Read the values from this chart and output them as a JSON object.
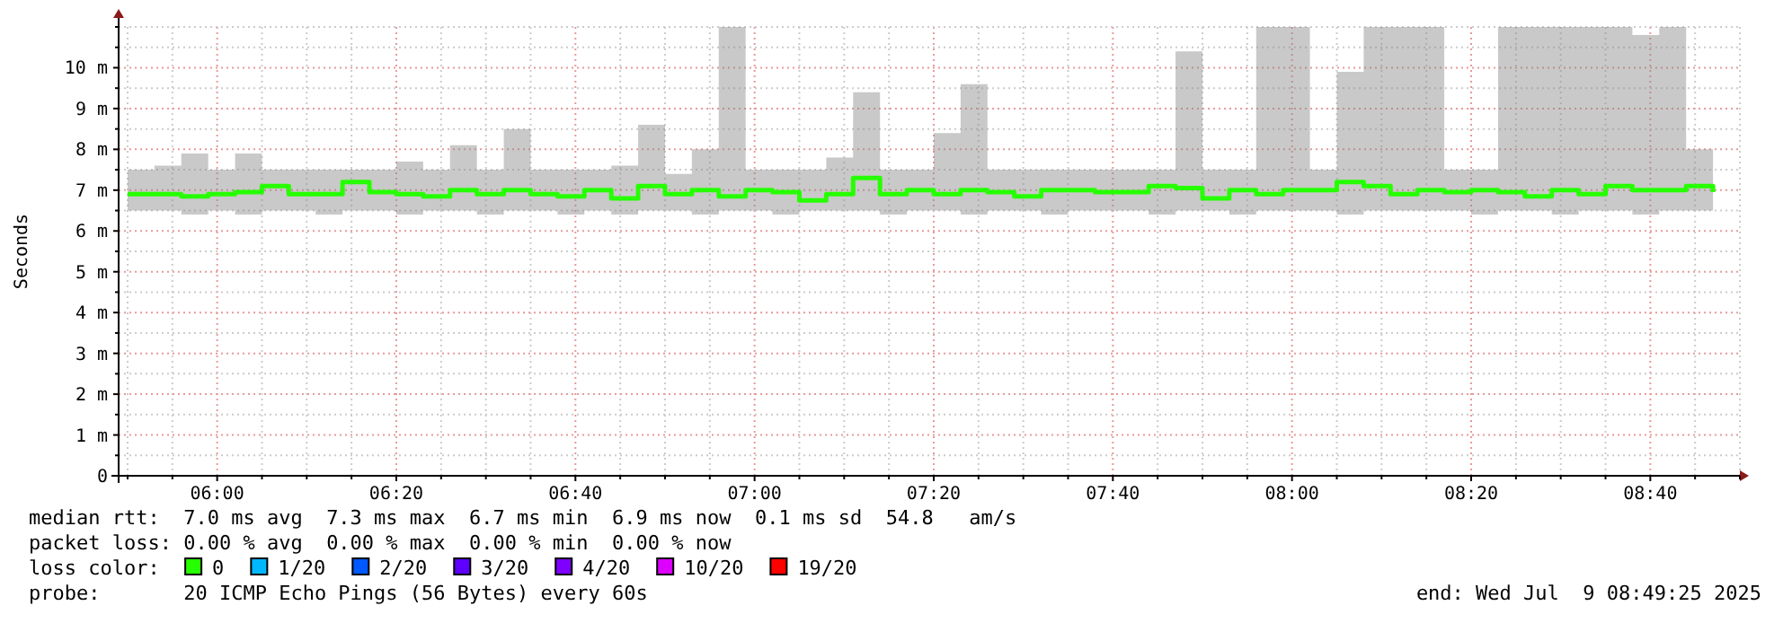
{
  "chart_data": {
    "type": "step",
    "ylabel": "Seconds",
    "legend_title": "loss color:",
    "legend": "bottom",
    "grid": true,
    "marker": "none",
    "line_style": "solid",
    "xlim": [
      "2025-07-09T05:49",
      "2025-07-09T08:50"
    ],
    "xticks": [
      {
        "value": "2025-07-09T05:50",
        "label": null
      },
      {
        "value": "2025-07-09T05:55",
        "label": null
      },
      {
        "value": "2025-07-09T06:00",
        "label": "06:00"
      },
      {
        "value": "2025-07-09T06:05",
        "label": null
      },
      {
        "value": "2025-07-09T06:10",
        "label": null
      },
      {
        "value": "2025-07-09T06:15",
        "label": null
      },
      {
        "value": "2025-07-09T06:20",
        "label": "06:20"
      },
      {
        "value": "2025-07-09T06:25",
        "label": null
      },
      {
        "value": "2025-07-09T06:30",
        "label": null
      },
      {
        "value": "2025-07-09T06:35",
        "label": null
      },
      {
        "value": "2025-07-09T06:40",
        "label": "06:40"
      },
      {
        "value": "2025-07-09T06:45",
        "label": null
      },
      {
        "value": "2025-07-09T06:50",
        "label": null
      },
      {
        "value": "2025-07-09T06:55",
        "label": null
      },
      {
        "value": "2025-07-09T07:00",
        "label": "07:00"
      },
      {
        "value": "2025-07-09T07:05",
        "label": null
      },
      {
        "value": "2025-07-09T07:10",
        "label": null
      },
      {
        "value": "2025-07-09T07:15",
        "label": null
      },
      {
        "value": "2025-07-09T07:20",
        "label": "07:20"
      },
      {
        "value": "2025-07-09T07:25",
        "label": null
      },
      {
        "value": "2025-07-09T07:30",
        "label": null
      },
      {
        "value": "2025-07-09T07:35",
        "label": null
      },
      {
        "value": "2025-07-09T07:40",
        "label": "07:40"
      },
      {
        "value": "2025-07-09T07:45",
        "label": null
      },
      {
        "value": "2025-07-09T07:50",
        "label": null
      },
      {
        "value": "2025-07-09T07:55",
        "label": null
      },
      {
        "value": "2025-07-09T08:00",
        "label": "08:00"
      },
      {
        "value": "2025-07-09T08:05",
        "label": null
      },
      {
        "value": "2025-07-09T08:10",
        "label": null
      },
      {
        "value": "2025-07-09T08:15",
        "label": null
      },
      {
        "value": "2025-07-09T08:20",
        "label": "08:20"
      },
      {
        "value": "2025-07-09T08:25",
        "label": null
      },
      {
        "value": "2025-07-09T08:30",
        "label": null
      },
      {
        "value": "2025-07-09T08:35",
        "label": null
      },
      {
        "value": "2025-07-09T08:40",
        "label": "08:40"
      },
      {
        "value": "2025-07-09T08:45",
        "label": null
      },
      {
        "value": "2025-07-09T08:50",
        "label": null
      }
    ],
    "ylim": [
      0,
      11
    ],
    "yticks": [
      {
        "value": 0,
        "label": "0"
      },
      {
        "value": 0.5,
        "label": null
      },
      {
        "value": 1,
        "label": "1 m"
      },
      {
        "value": 1.5,
        "label": null
      },
      {
        "value": 2,
        "label": "2 m"
      },
      {
        "value": 2.5,
        "label": null
      },
      {
        "value": 3,
        "label": "3 m"
      },
      {
        "value": 3.5,
        "label": null
      },
      {
        "value": 4,
        "label": "4 m"
      },
      {
        "value": 4.5,
        "label": null
      },
      {
        "value": 5,
        "label": "5 m"
      },
      {
        "value": 5.5,
        "label": null
      },
      {
        "value": 6,
        "label": "6 m"
      },
      {
        "value": 6.5,
        "label": null
      },
      {
        "value": 7,
        "label": "7 m"
      },
      {
        "value": 7.5,
        "label": null
      },
      {
        "value": 8,
        "label": "8 m"
      },
      {
        "value": 8.5,
        "label": null
      },
      {
        "value": 9,
        "label": "9 m"
      },
      {
        "value": 9.5,
        "label": null
      },
      {
        "value": 10,
        "label": "10 m"
      },
      {
        "value": 10.5,
        "label": null
      },
      {
        "value": 11,
        "label": null
      }
    ],
    "x": [
      "2025-07-09T05:50",
      "2025-07-09T05:53",
      "2025-07-09T05:56",
      "2025-07-09T05:59",
      "2025-07-09T06:02",
      "2025-07-09T06:05",
      "2025-07-09T06:08",
      "2025-07-09T06:11",
      "2025-07-09T06:14",
      "2025-07-09T06:17",
      "2025-07-09T06:20",
      "2025-07-09T06:23",
      "2025-07-09T06:26",
      "2025-07-09T06:29",
      "2025-07-09T06:32",
      "2025-07-09T06:35",
      "2025-07-09T06:38",
      "2025-07-09T06:41",
      "2025-07-09T06:44",
      "2025-07-09T06:47",
      "2025-07-09T06:50",
      "2025-07-09T06:53",
      "2025-07-09T06:56",
      "2025-07-09T06:59",
      "2025-07-09T07:02",
      "2025-07-09T07:05",
      "2025-07-09T07:08",
      "2025-07-09T07:11",
      "2025-07-09T07:14",
      "2025-07-09T07:17",
      "2025-07-09T07:20",
      "2025-07-09T07:23",
      "2025-07-09T07:26",
      "2025-07-09T07:29",
      "2025-07-09T07:32",
      "2025-07-09T07:35",
      "2025-07-09T07:38",
      "2025-07-09T07:41",
      "2025-07-09T07:44",
      "2025-07-09T07:47",
      "2025-07-09T07:50",
      "2025-07-09T07:53",
      "2025-07-09T07:56",
      "2025-07-09T07:59",
      "2025-07-09T08:02",
      "2025-07-09T08:05",
      "2025-07-09T08:08",
      "2025-07-09T08:11",
      "2025-07-09T08:14",
      "2025-07-09T08:17",
      "2025-07-09T08:20",
      "2025-07-09T08:23",
      "2025-07-09T08:26",
      "2025-07-09T08:29",
      "2025-07-09T08:32",
      "2025-07-09T08:35",
      "2025-07-09T08:38",
      "2025-07-09T08:41",
      "2025-07-09T08:44",
      "2025-07-09T08:47"
    ],
    "series": [
      {
        "name": "0",
        "color": "#26ff00",
        "values": [
          6.9,
          6.9,
          6.85,
          6.9,
          6.95,
          7.1,
          6.9,
          6.9,
          7.2,
          6.95,
          6.9,
          6.85,
          7.0,
          6.9,
          7.0,
          6.9,
          6.85,
          7.0,
          6.8,
          7.1,
          6.9,
          7.0,
          6.85,
          7.0,
          6.95,
          6.75,
          6.9,
          7.3,
          6.9,
          7.0,
          6.9,
          7.0,
          6.95,
          6.85,
          7.0,
          7.0,
          6.95,
          6.95,
          7.1,
          7.05,
          6.8,
          7.0,
          6.9,
          7.0,
          7.0,
          7.2,
          7.1,
          6.9,
          7.0,
          6.95,
          7.0,
          6.95,
          6.85,
          7.0,
          6.9,
          7.1,
          7.0,
          7.0,
          7.1,
          6.95
        ],
        "lower": [
          6.5,
          6.5,
          6.4,
          6.5,
          6.4,
          6.5,
          6.5,
          6.4,
          6.5,
          6.5,
          6.4,
          6.5,
          6.5,
          6.4,
          6.5,
          6.5,
          6.4,
          6.5,
          6.4,
          6.5,
          6.5,
          6.4,
          6.5,
          6.5,
          6.4,
          6.5,
          6.5,
          6.5,
          6.4,
          6.5,
          6.5,
          6.4,
          6.5,
          6.5,
          6.4,
          6.5,
          6.5,
          6.5,
          6.4,
          6.5,
          6.5,
          6.4,
          6.5,
          6.5,
          6.5,
          6.4,
          6.5,
          6.5,
          6.5,
          6.5,
          6.4,
          6.5,
          6.5,
          6.4,
          6.5,
          6.5,
          6.4,
          6.5,
          6.5,
          6.5
        ],
        "upper": [
          7.5,
          7.6,
          7.9,
          7.5,
          7.9,
          7.5,
          7.5,
          7.5,
          7.5,
          7.5,
          7.7,
          7.5,
          8.1,
          7.5,
          8.5,
          7.5,
          7.5,
          7.5,
          7.6,
          8.6,
          7.4,
          8.0,
          11,
          7.5,
          7.5,
          7.5,
          7.8,
          9.4,
          7.5,
          7.5,
          8.4,
          9.6,
          7.5,
          7.5,
          7.5,
          7.5,
          7.5,
          7.5,
          7.5,
          10.4,
          7.5,
          7.5,
          11,
          11,
          7.5,
          9.9,
          11,
          11,
          11,
          7.5,
          7.5,
          11,
          11,
          11,
          11,
          11,
          10.8,
          11,
          8.0,
          7.5
        ]
      },
      {
        "name": "1/20",
        "color": "#00b8ff",
        "values": [
          null,
          null,
          null,
          null,
          null,
          null,
          null,
          null,
          null,
          null,
          null,
          null,
          null,
          null,
          null,
          null,
          null,
          null,
          null,
          null,
          null,
          null,
          null,
          null,
          null,
          null,
          null,
          null,
          null,
          null,
          null,
          null,
          null,
          null,
          null,
          null,
          null,
          null,
          null,
          null,
          null,
          null,
          null,
          null,
          null,
          null,
          null,
          null,
          null,
          null,
          null,
          null,
          null,
          null,
          null,
          null,
          null,
          null,
          null,
          null
        ]
      },
      {
        "name": "2/20",
        "color": "#0059ff",
        "values": [
          null,
          null,
          null,
          null,
          null,
          null,
          null,
          null,
          null,
          null,
          null,
          null,
          null,
          null,
          null,
          null,
          null,
          null,
          null,
          null,
          null,
          null,
          null,
          null,
          null,
          null,
          null,
          null,
          null,
          null,
          null,
          null,
          null,
          null,
          null,
          null,
          null,
          null,
          null,
          null,
          null,
          null,
          null,
          null,
          null,
          null,
          null,
          null,
          null,
          null,
          null,
          null,
          null,
          null,
          null,
          null,
          null,
          null,
          null,
          null
        ]
      },
      {
        "name": "3/20",
        "color": "#5e00ff",
        "values": [
          null,
          null,
          null,
          null,
          null,
          null,
          null,
          null,
          null,
          null,
          null,
          null,
          null,
          null,
          null,
          null,
          null,
          null,
          null,
          null,
          null,
          null,
          null,
          null,
          null,
          null,
          null,
          null,
          null,
          null,
          null,
          null,
          null,
          null,
          null,
          null,
          null,
          null,
          null,
          null,
          null,
          null,
          null,
          null,
          null,
          null,
          null,
          null,
          null,
          null,
          null,
          null,
          null,
          null,
          null,
          null,
          null,
          null,
          null,
          null
        ]
      },
      {
        "name": "4/20",
        "color": "#7e00ff",
        "values": [
          null,
          null,
          null,
          null,
          null,
          null,
          null,
          null,
          null,
          null,
          null,
          null,
          null,
          null,
          null,
          null,
          null,
          null,
          null,
          null,
          null,
          null,
          null,
          null,
          null,
          null,
          null,
          null,
          null,
          null,
          null,
          null,
          null,
          null,
          null,
          null,
          null,
          null,
          null,
          null,
          null,
          null,
          null,
          null,
          null,
          null,
          null,
          null,
          null,
          null,
          null,
          null,
          null,
          null,
          null,
          null,
          null,
          null,
          null,
          null
        ]
      },
      {
        "name": "10/20",
        "color": "#dd00ff",
        "values": [
          null,
          null,
          null,
          null,
          null,
          null,
          null,
          null,
          null,
          null,
          null,
          null,
          null,
          null,
          null,
          null,
          null,
          null,
          null,
          null,
          null,
          null,
          null,
          null,
          null,
          null,
          null,
          null,
          null,
          null,
          null,
          null,
          null,
          null,
          null,
          null,
          null,
          null,
          null,
          null,
          null,
          null,
          null,
          null,
          null,
          null,
          null,
          null,
          null,
          null,
          null,
          null,
          null,
          null,
          null,
          null,
          null,
          null,
          null,
          null
        ]
      },
      {
        "name": "19/20",
        "color": "#ff0000",
        "values": [
          null,
          null,
          null,
          null,
          null,
          null,
          null,
          null,
          null,
          null,
          null,
          null,
          null,
          null,
          null,
          null,
          null,
          null,
          null,
          null,
          null,
          null,
          null,
          null,
          null,
          null,
          null,
          null,
          null,
          null,
          null,
          null,
          null,
          null,
          null,
          null,
          null,
          null,
          null,
          null,
          null,
          null,
          null,
          null,
          null,
          null,
          null,
          null,
          null,
          null,
          null,
          null,
          null,
          null,
          null,
          null,
          null,
          null,
          null,
          null
        ]
      }
    ],
    "annotations": [
      "median rtt:  7.0 ms avg  7.3 ms max  6.7 ms min  6.9 ms now  0.1 ms sd  54.8   am/s",
      "packet loss: 0.00 % avg  0.00 % max  0.00 % min  0.00 % now",
      "probe:       20 ICMP Echo Pings (56 Bytes) every 60s",
      "end: Wed Jul  9 08:49:25 2025"
    ]
  }
}
